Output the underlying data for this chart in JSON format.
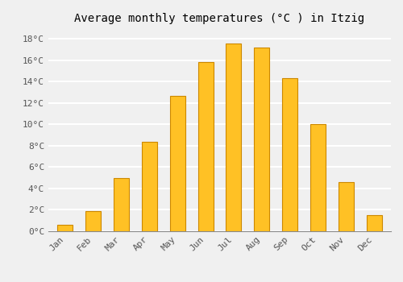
{
  "title": "Average monthly temperatures (°C ) in Itzig",
  "months": [
    "Jan",
    "Feb",
    "Mar",
    "Apr",
    "May",
    "Jun",
    "Jul",
    "Aug",
    "Sep",
    "Oct",
    "Nov",
    "Dec"
  ],
  "values": [
    0.6,
    1.9,
    5.0,
    8.4,
    12.7,
    15.8,
    17.6,
    17.2,
    14.3,
    10.0,
    4.6,
    1.5
  ],
  "bar_color": "#FFC125",
  "bar_edge_color": "#CC8800",
  "background_color": "#F0F0F0",
  "grid_color": "#FFFFFF",
  "ylim": [
    0,
    19
  ],
  "yticks": [
    0,
    2,
    4,
    6,
    8,
    10,
    12,
    14,
    16,
    18
  ],
  "ytick_labels": [
    "0°C",
    "2°C",
    "4°C",
    "6°C",
    "8°C",
    "10°C",
    "12°C",
    "14°C",
    "16°C",
    "18°C"
  ],
  "title_fontsize": 10,
  "tick_fontsize": 8,
  "font_family": "monospace",
  "bar_width": 0.55
}
